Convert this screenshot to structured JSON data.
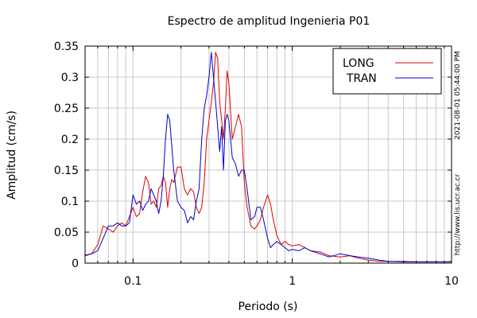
{
  "chart_data": {
    "type": "line",
    "title": "Espectro de amplitud Ingenieria P01",
    "xlabel": "Periodo (s)",
    "ylabel": "Amplitud (cm/s)",
    "xscale": "log",
    "xlim": [
      0.05,
      10
    ],
    "ylim": [
      0,
      0.35
    ],
    "x_ticks": [
      {
        "value": 0.1,
        "label": "0.1"
      },
      {
        "value": 1,
        "label": "1"
      },
      {
        "value": 10,
        "label": "10"
      }
    ],
    "y_ticks": [
      {
        "value": 0,
        "label": "0"
      },
      {
        "value": 0.05,
        "label": "0.05"
      },
      {
        "value": 0.1,
        "label": "0.1"
      },
      {
        "value": 0.15,
        "label": "0.15"
      },
      {
        "value": 0.2,
        "label": "0.2"
      },
      {
        "value": 0.25,
        "label": "0.25"
      },
      {
        "value": 0.3,
        "label": "0.3"
      },
      {
        "value": 0.35,
        "label": "0.35"
      }
    ],
    "grid": true,
    "legend_position": "top-right",
    "timestamp": "2021-08-01 05:44:00 PM",
    "website": "http://www.lis.ucr.ac.cr",
    "series": [
      {
        "name": "LONG",
        "color": "#dd0000",
        "x": [
          0.05,
          0.055,
          0.06,
          0.065,
          0.07,
          0.075,
          0.08,
          0.085,
          0.09,
          0.095,
          0.1,
          0.105,
          0.11,
          0.115,
          0.12,
          0.125,
          0.13,
          0.135,
          0.14,
          0.145,
          0.15,
          0.155,
          0.16,
          0.165,
          0.17,
          0.175,
          0.18,
          0.19,
          0.2,
          0.21,
          0.22,
          0.23,
          0.24,
          0.25,
          0.26,
          0.27,
          0.28,
          0.29,
          0.3,
          0.31,
          0.32,
          0.33,
          0.34,
          0.35,
          0.36,
          0.37,
          0.38,
          0.39,
          0.4,
          0.42,
          0.44,
          0.46,
          0.48,
          0.5,
          0.52,
          0.55,
          0.58,
          0.6,
          0.63,
          0.66,
          0.7,
          0.73,
          0.76,
          0.8,
          0.85,
          0.9,
          0.95,
          1.0,
          1.1,
          1.2,
          1.3,
          1.5,
          1.7,
          2.0,
          2.3,
          2.6,
          3.0,
          3.5,
          4.0,
          5.0,
          6.0,
          7.0,
          8.0,
          9.0,
          10.0
        ],
        "y": [
          0.013,
          0.015,
          0.03,
          0.06,
          0.055,
          0.05,
          0.06,
          0.065,
          0.06,
          0.075,
          0.09,
          0.075,
          0.08,
          0.115,
          0.14,
          0.13,
          0.095,
          0.1,
          0.09,
          0.12,
          0.125,
          0.14,
          0.13,
          0.09,
          0.12,
          0.135,
          0.13,
          0.155,
          0.155,
          0.12,
          0.11,
          0.12,
          0.115,
          0.09,
          0.08,
          0.09,
          0.13,
          0.2,
          0.23,
          0.26,
          0.29,
          0.34,
          0.33,
          0.26,
          0.23,
          0.2,
          0.25,
          0.31,
          0.29,
          0.2,
          0.22,
          0.24,
          0.22,
          0.13,
          0.09,
          0.06,
          0.055,
          0.06,
          0.07,
          0.09,
          0.11,
          0.095,
          0.07,
          0.045,
          0.03,
          0.035,
          0.03,
          0.028,
          0.03,
          0.025,
          0.02,
          0.018,
          0.012,
          0.01,
          0.012,
          0.008,
          0.005,
          0.003,
          0.003,
          0.003,
          0.002,
          0.002,
          0.002,
          0.002,
          0.003
        ]
      },
      {
        "name": "TRAN",
        "color": "#0000cc",
        "x": [
          0.05,
          0.055,
          0.06,
          0.065,
          0.07,
          0.075,
          0.08,
          0.085,
          0.09,
          0.095,
          0.1,
          0.105,
          0.11,
          0.115,
          0.12,
          0.125,
          0.13,
          0.135,
          0.14,
          0.145,
          0.15,
          0.155,
          0.16,
          0.165,
          0.17,
          0.175,
          0.18,
          0.19,
          0.2,
          0.21,
          0.22,
          0.23,
          0.24,
          0.25,
          0.26,
          0.27,
          0.28,
          0.29,
          0.3,
          0.31,
          0.32,
          0.33,
          0.34,
          0.35,
          0.36,
          0.37,
          0.38,
          0.39,
          0.4,
          0.42,
          0.44,
          0.46,
          0.48,
          0.5,
          0.52,
          0.55,
          0.58,
          0.6,
          0.63,
          0.66,
          0.7,
          0.73,
          0.76,
          0.8,
          0.85,
          0.9,
          0.95,
          1.0,
          1.1,
          1.2,
          1.3,
          1.5,
          1.7,
          2.0,
          2.3,
          2.6,
          3.0,
          3.5,
          4.0,
          5.0,
          6.0,
          7.0,
          8.0,
          9.0,
          10.0
        ],
        "y": [
          0.012,
          0.015,
          0.02,
          0.04,
          0.06,
          0.06,
          0.065,
          0.06,
          0.06,
          0.065,
          0.11,
          0.095,
          0.1,
          0.085,
          0.095,
          0.1,
          0.12,
          0.11,
          0.1,
          0.08,
          0.1,
          0.14,
          0.2,
          0.24,
          0.23,
          0.19,
          0.15,
          0.1,
          0.09,
          0.085,
          0.065,
          0.075,
          0.07,
          0.1,
          0.12,
          0.2,
          0.25,
          0.27,
          0.3,
          0.34,
          0.3,
          0.26,
          0.22,
          0.18,
          0.22,
          0.15,
          0.23,
          0.24,
          0.23,
          0.17,
          0.16,
          0.14,
          0.15,
          0.15,
          0.12,
          0.07,
          0.075,
          0.09,
          0.09,
          0.07,
          0.04,
          0.025,
          0.03,
          0.035,
          0.03,
          0.025,
          0.02,
          0.022,
          0.02,
          0.025,
          0.02,
          0.015,
          0.01,
          0.015,
          0.012,
          0.01,
          0.008,
          0.005,
          0.003,
          0.002,
          0.002,
          0.002,
          0.002,
          0.002,
          0.002
        ]
      }
    ]
  }
}
